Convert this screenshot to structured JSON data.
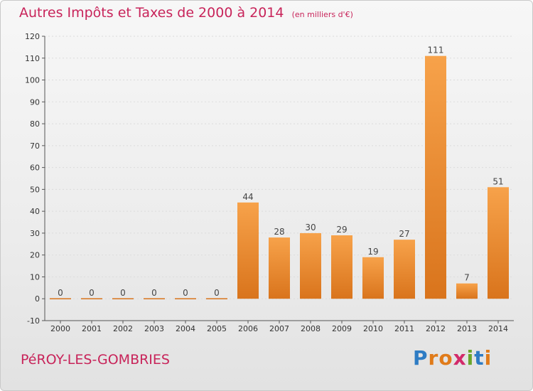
{
  "header": {
    "title": "Autres Impôts et Taxes de 2000 à 2014",
    "subtitle": "(en milliers d'€)"
  },
  "footer": {
    "commune": "PéROY-LES-GOMBRIES",
    "logo_letters": [
      "P",
      "r",
      "o",
      "x",
      "i",
      "t",
      "i"
    ],
    "logo_colors": [
      "#2e7cc4",
      "#e07b1a",
      "#e07b1a",
      "#d22a6a",
      "#6aa62c",
      "#2e7cc4",
      "#e07b1a"
    ]
  },
  "colors": {
    "bar_light": "#f7a24a",
    "bar_dark": "#d9741c",
    "grid": "#dcdcdc",
    "title": "#c8245a"
  },
  "chart_data": {
    "type": "bar",
    "title": "Autres Impôts et Taxes de 2000 à 2014",
    "subtitle": "(en milliers d'€)",
    "categories": [
      "2000",
      "2001",
      "2002",
      "2003",
      "2004",
      "2005",
      "2006",
      "2007",
      "2008",
      "2009",
      "2010",
      "2011",
      "2012",
      "2013",
      "2014"
    ],
    "values": [
      0,
      0,
      0,
      0,
      0,
      0,
      44,
      28,
      30,
      29,
      19,
      27,
      111,
      7,
      51
    ],
    "ylim": [
      -10,
      120
    ],
    "yticks": [
      -10,
      0,
      10,
      20,
      30,
      40,
      50,
      60,
      70,
      80,
      90,
      100,
      110,
      120
    ],
    "grid": true
  }
}
